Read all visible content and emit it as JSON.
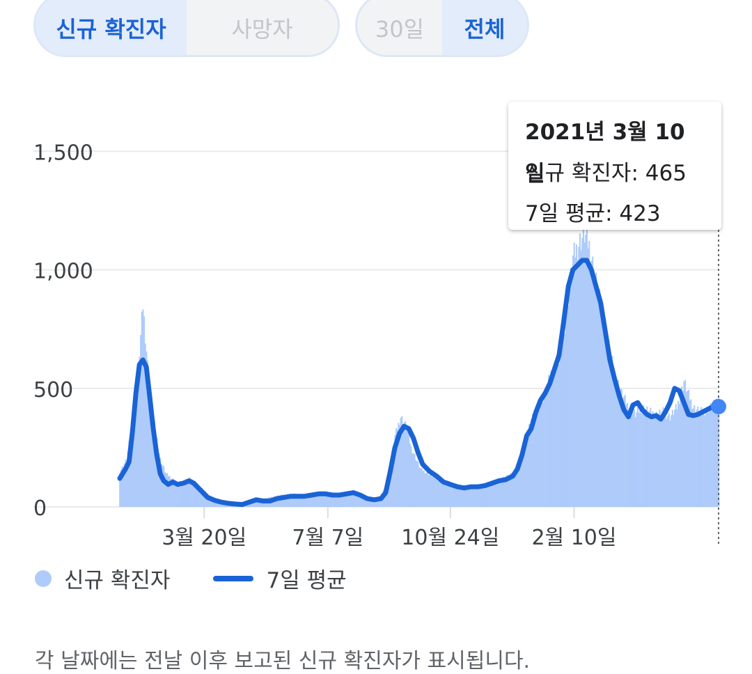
{
  "toggles": {
    "metric": [
      {
        "label": "신규 확진자",
        "active": true
      },
      {
        "label": "사망자",
        "active": false
      }
    ],
    "range": [
      {
        "label": "30일",
        "active": false
      },
      {
        "label": "전체",
        "active": true
      }
    ]
  },
  "tooltip": {
    "date": "2021년 3월 10일",
    "cases": "신규 확진자: 465",
    "avg": "7일 평균: 423"
  },
  "legend": {
    "cases": "신규 확진자",
    "avg": "7일 평균"
  },
  "footnote": "각 날짜에는 전날 이후 보고된 신규 확진자가 표시됩니다.",
  "colors": {
    "bar": "#aecbfa",
    "line": "#1a63d6",
    "marker": "#4285f4",
    "active_text": "#1a63d6"
  },
  "chart_data": {
    "type": "bar",
    "title": "",
    "xlabel": "",
    "ylabel": "",
    "ylim": [
      0,
      1600
    ],
    "yticks": [
      0,
      500,
      1000,
      1500
    ],
    "ytick_labels": [
      "0",
      "500",
      "1,000",
      "1,500"
    ],
    "xticks": [
      "3월 20일",
      "7월 7일",
      "10월 24일",
      "2월 10일"
    ],
    "series": [
      {
        "name": "신규 확진자",
        "type": "bar",
        "points": [
          [
            0,
            150
          ],
          [
            6,
            200
          ],
          [
            10,
            330
          ],
          [
            15,
            520
          ],
          [
            20,
            850
          ],
          [
            24,
            600
          ],
          [
            28,
            400
          ],
          [
            35,
            200
          ],
          [
            40,
            140
          ],
          [
            50,
            100
          ],
          [
            60,
            120
          ],
          [
            70,
            80
          ],
          [
            80,
            40
          ],
          [
            90,
            20
          ],
          [
            100,
            10
          ],
          [
            110,
            15
          ],
          [
            120,
            30
          ],
          [
            130,
            40
          ],
          [
            140,
            50
          ],
          [
            150,
            55
          ],
          [
            160,
            50
          ],
          [
            170,
            55
          ],
          [
            180,
            60
          ],
          [
            190,
            55
          ],
          [
            200,
            60
          ],
          [
            210,
            50
          ],
          [
            218,
            40
          ],
          [
            225,
            35
          ],
          [
            232,
            110
          ],
          [
            238,
            300
          ],
          [
            243,
            380
          ],
          [
            248,
            340
          ],
          [
            252,
            250
          ],
          [
            260,
            160
          ],
          [
            270,
            130
          ],
          [
            280,
            100
          ],
          [
            290,
            90
          ],
          [
            300,
            80
          ],
          [
            310,
            90
          ],
          [
            320,
            100
          ],
          [
            330,
            120
          ],
          [
            340,
            140
          ],
          [
            345,
            160
          ],
          [
            350,
            280
          ],
          [
            356,
            370
          ],
          [
            362,
            420
          ],
          [
            368,
            480
          ],
          [
            374,
            580
          ],
          [
            380,
            620
          ],
          [
            386,
            800
          ],
          [
            392,
            1050
          ],
          [
            398,
            1120
          ],
          [
            402,
            1150
          ],
          [
            406,
            1100
          ],
          [
            410,
            1000
          ],
          [
            416,
            850
          ],
          [
            422,
            700
          ],
          [
            428,
            560
          ],
          [
            434,
            480
          ],
          [
            440,
            420
          ],
          [
            446,
            390
          ],
          [
            452,
            420
          ],
          [
            458,
            400
          ],
          [
            464,
            390
          ],
          [
            470,
            400
          ],
          [
            476,
            380
          ],
          [
            482,
            420
          ],
          [
            488,
            530
          ],
          [
            492,
            470
          ],
          [
            496,
            420
          ],
          [
            502,
            400
          ],
          [
            508,
            410
          ],
          [
            514,
            430
          ],
          [
            518,
            465
          ]
        ]
      },
      {
        "name": "7일 평균",
        "type": "line",
        "points": [
          [
            0,
            120
          ],
          [
            5,
            160
          ],
          [
            8,
            190
          ],
          [
            11,
            320
          ],
          [
            14,
            480
          ],
          [
            17,
            600
          ],
          [
            20,
            620
          ],
          [
            23,
            590
          ],
          [
            26,
            460
          ],
          [
            29,
            330
          ],
          [
            32,
            220
          ],
          [
            35,
            140
          ],
          [
            38,
            110
          ],
          [
            42,
            95
          ],
          [
            46,
            105
          ],
          [
            50,
            95
          ],
          [
            55,
            100
          ],
          [
            60,
            110
          ],
          [
            64,
            100
          ],
          [
            68,
            80
          ],
          [
            72,
            60
          ],
          [
            76,
            40
          ],
          [
            82,
            28
          ],
          [
            88,
            20
          ],
          [
            94,
            15
          ],
          [
            100,
            12
          ],
          [
            106,
            10
          ],
          [
            112,
            20
          ],
          [
            118,
            30
          ],
          [
            124,
            25
          ],
          [
            130,
            25
          ],
          [
            136,
            35
          ],
          [
            142,
            40
          ],
          [
            148,
            45
          ],
          [
            154,
            45
          ],
          [
            160,
            45
          ],
          [
            166,
            50
          ],
          [
            172,
            55
          ],
          [
            178,
            55
          ],
          [
            184,
            50
          ],
          [
            190,
            50
          ],
          [
            196,
            55
          ],
          [
            202,
            60
          ],
          [
            208,
            50
          ],
          [
            214,
            35
          ],
          [
            220,
            30
          ],
          [
            226,
            35
          ],
          [
            230,
            60
          ],
          [
            234,
            150
          ],
          [
            238,
            250
          ],
          [
            242,
            310
          ],
          [
            246,
            340
          ],
          [
            250,
            330
          ],
          [
            254,
            290
          ],
          [
            258,
            230
          ],
          [
            262,
            180
          ],
          [
            268,
            150
          ],
          [
            274,
            130
          ],
          [
            280,
            105
          ],
          [
            286,
            95
          ],
          [
            292,
            85
          ],
          [
            298,
            80
          ],
          [
            304,
            85
          ],
          [
            310,
            85
          ],
          [
            316,
            90
          ],
          [
            322,
            100
          ],
          [
            328,
            110
          ],
          [
            334,
            115
          ],
          [
            340,
            130
          ],
          [
            344,
            160
          ],
          [
            348,
            220
          ],
          [
            352,
            300
          ],
          [
            356,
            330
          ],
          [
            360,
            400
          ],
          [
            364,
            450
          ],
          [
            368,
            480
          ],
          [
            372,
            520
          ],
          [
            376,
            580
          ],
          [
            380,
            640
          ],
          [
            384,
            780
          ],
          [
            388,
            930
          ],
          [
            392,
            1000
          ],
          [
            396,
            1020
          ],
          [
            400,
            1040
          ],
          [
            404,
            1040
          ],
          [
            408,
            1000
          ],
          [
            412,
            930
          ],
          [
            416,
            860
          ],
          [
            420,
            740
          ],
          [
            424,
            620
          ],
          [
            428,
            540
          ],
          [
            432,
            470
          ],
          [
            436,
            410
          ],
          [
            440,
            380
          ],
          [
            444,
            430
          ],
          [
            448,
            440
          ],
          [
            452,
            410
          ],
          [
            456,
            390
          ],
          [
            460,
            380
          ],
          [
            464,
            385
          ],
          [
            468,
            370
          ],
          [
            472,
            400
          ],
          [
            476,
            440
          ],
          [
            480,
            500
          ],
          [
            484,
            490
          ],
          [
            488,
            440
          ],
          [
            492,
            390
          ],
          [
            496,
            385
          ],
          [
            500,
            390
          ],
          [
            504,
            400
          ],
          [
            508,
            410
          ],
          [
            512,
            420
          ],
          [
            518,
            423
          ]
        ]
      }
    ],
    "highlight": {
      "date": "2021년 3월 10일",
      "cases": 465,
      "avg": 423
    }
  }
}
